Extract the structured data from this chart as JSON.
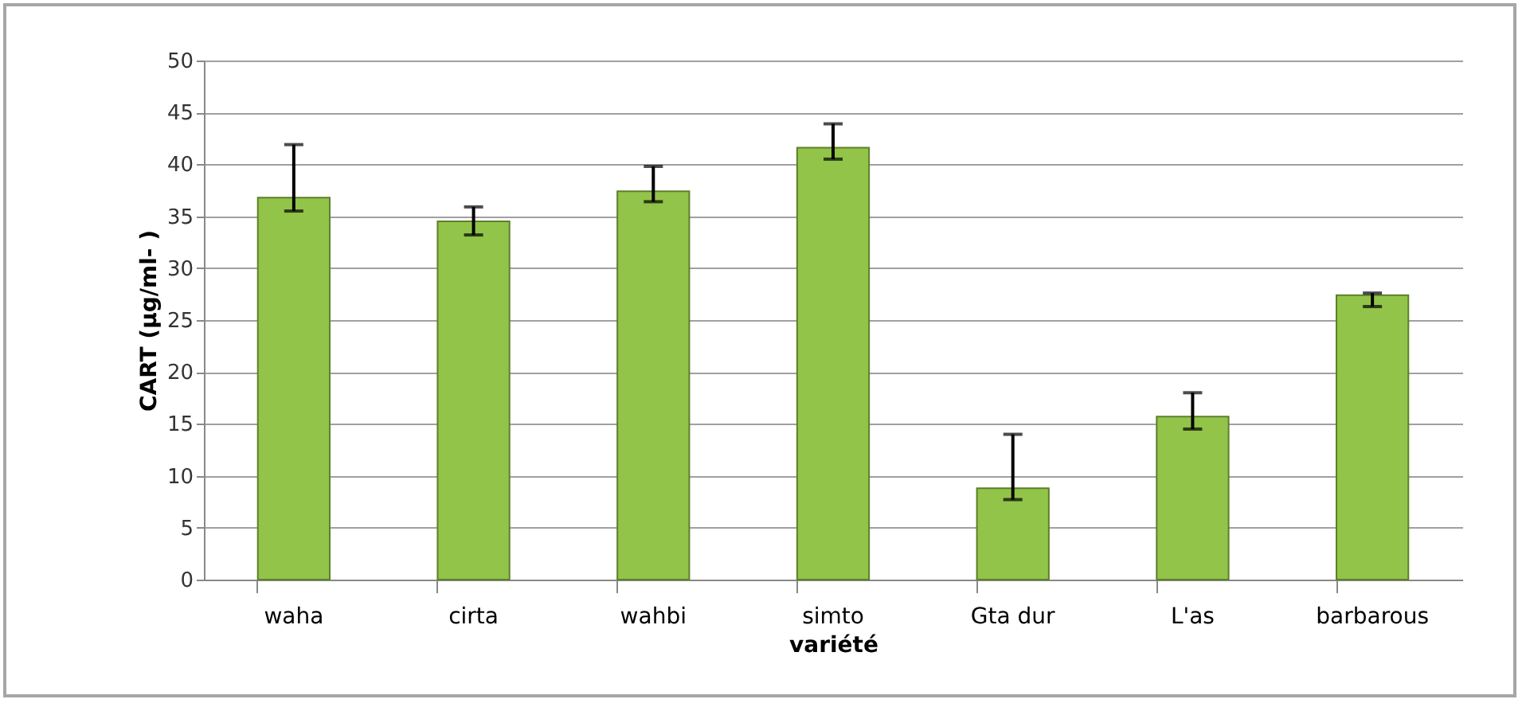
{
  "chart_data": {
    "type": "bar",
    "xlabel": "variété",
    "ylabel": "CART (µg/ml- )",
    "categories": [
      "waha",
      "cirta",
      "wahbi",
      "simto",
      "Gta dur",
      "L'as",
      "barbarous"
    ],
    "series": [
      {
        "color": "#92c44a",
        "values": [
          36.8,
          34.5,
          37.4,
          41.6,
          8.8,
          15.7,
          27.4
        ],
        "errors": [
          [
            35.5,
            41.9
          ],
          [
            33.2,
            35.9
          ],
          [
            36.4,
            39.8
          ],
          [
            40.5,
            43.9
          ],
          [
            7.7,
            14.0
          ],
          [
            14.5,
            18.0
          ],
          [
            26.3,
            27.6
          ]
        ]
      }
    ],
    "ylim": [
      0,
      50
    ],
    "yticks": [
      0,
      5,
      10,
      15,
      20,
      25,
      30,
      35,
      40,
      45,
      50
    ],
    "grid": "y"
  }
}
